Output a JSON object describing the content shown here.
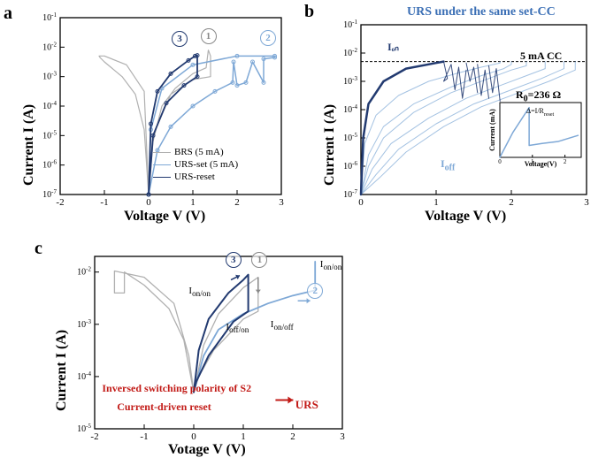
{
  "colors": {
    "bg": "#ffffff",
    "axis": "#000000",
    "brs": "#b0b0b0",
    "urs_set": "#7ea8d6",
    "urs_reset": "#223a70",
    "red": "#c21b17",
    "circ_gray": "#888888",
    "circ_blue": "#7ea8d6",
    "circ_dark": "#223a70"
  },
  "panel_a": {
    "label": "a",
    "xaxis": "Voltage V (V)",
    "yaxis": "Current I (A)",
    "xlim": [
      -2,
      3
    ],
    "ylim_exp": [
      -7,
      -1
    ],
    "xticks": [
      -2,
      -1,
      0,
      1,
      2,
      3
    ],
    "yticks_exp": [
      -7,
      -6,
      -5,
      -4,
      -3,
      -2,
      -1
    ],
    "legend": [
      {
        "color": "#b0b0b0",
        "label": "BRS (5 mA)",
        "marker": false
      },
      {
        "color": "#7ea8d6",
        "label": "URS-set (5 mA)",
        "marker": true
      },
      {
        "color": "#223a70",
        "label": "URS-reset",
        "marker": true
      }
    ],
    "markers": {
      "m1": {
        "num": "1",
        "x": 1.35,
        "yexp": -1.9,
        "color": "#888888"
      },
      "m2": {
        "num": "2",
        "x": 2.7,
        "yexp": -1.95,
        "color": "#7ea8d6"
      },
      "m3": {
        "num": "3",
        "x": 0.7,
        "yexp": -2.0,
        "color": "#223a70"
      }
    },
    "series": {
      "brs_pos": [
        [
          0,
          -7
        ],
        [
          0.1,
          -5.2
        ],
        [
          0.3,
          -4.0
        ],
        [
          0.6,
          -3.4
        ],
        [
          1.0,
          -2.9
        ],
        [
          1.3,
          -2.7
        ],
        [
          1.35,
          -2.1
        ],
        [
          1.4,
          -2.3
        ],
        [
          1.4,
          -3.0
        ],
        [
          1.0,
          -3.1
        ],
        [
          0.5,
          -3.6
        ],
        [
          0.1,
          -5.0
        ],
        [
          0,
          -7
        ]
      ],
      "brs_neg": [
        [
          0,
          -7
        ],
        [
          -0.1,
          -4.8
        ],
        [
          -0.3,
          -3.6
        ],
        [
          -0.6,
          -3.0
        ],
        [
          -1.0,
          -2.5
        ],
        [
          -1.1,
          -2.35
        ],
        [
          -1.12,
          -2.3
        ],
        [
          -1.0,
          -2.3
        ],
        [
          -0.5,
          -2.6
        ],
        [
          -0.1,
          -3.5
        ],
        [
          0,
          -7
        ]
      ],
      "urs_set": [
        [
          0,
          -7
        ],
        [
          0.2,
          -5.5
        ],
        [
          0.5,
          -4.7
        ],
        [
          1.0,
          -4.0
        ],
        [
          1.5,
          -3.5
        ],
        [
          1.9,
          -3.2
        ],
        [
          1.92,
          -2.5
        ],
        [
          2.0,
          -3.3
        ],
        [
          2.2,
          -3.2
        ],
        [
          2.35,
          -2.5
        ],
        [
          2.6,
          -3.2
        ],
        [
          2.6,
          -2.4
        ],
        [
          2.85,
          -2.35
        ],
        [
          2.85,
          -2.3
        ],
        [
          2.0,
          -2.3
        ],
        [
          1.0,
          -2.6
        ],
        [
          0.3,
          -3.4
        ],
        [
          0.05,
          -4.8
        ],
        [
          0,
          -7
        ]
      ],
      "urs_reset": [
        [
          0,
          -7
        ],
        [
          0.05,
          -4.6
        ],
        [
          0.2,
          -3.5
        ],
        [
          0.5,
          -2.9
        ],
        [
          0.9,
          -2.45
        ],
        [
          1.05,
          -2.3
        ],
        [
          1.1,
          -2.28
        ],
        [
          1.1,
          -3.0
        ],
        [
          0.8,
          -3.3
        ],
        [
          0.4,
          -3.9
        ],
        [
          0.1,
          -5.0
        ],
        [
          0,
          -7
        ]
      ]
    }
  },
  "panel_b": {
    "label": "b",
    "header": "URS under the same set-CC",
    "xaxis": "Voltage V (V)",
    "yaxis": "Current I (A)",
    "xlim": [
      0,
      3
    ],
    "ylim_exp": [
      -7,
      -1
    ],
    "xticks": [
      0,
      1,
      2,
      3
    ],
    "yticks_exp": [
      -7,
      -6,
      -5,
      -4,
      -3,
      -2,
      -1
    ],
    "cc_label": "5 mA CC",
    "cc_exp": -2.3,
    "ion_label": "Iₒₙ",
    "ioff_label": "I_off",
    "r0_label": "R₀=236 Ω",
    "inset": {
      "xaxis": "Voltage(V)",
      "yaxis": "Current (mA)",
      "delta_label": "Δ=I/R_reset",
      "curve": [
        [
          0,
          0
        ],
        [
          0.4,
          2.5
        ],
        [
          0.9,
          5.0
        ],
        [
          0.9,
          1.2
        ],
        [
          1.3,
          1.4
        ],
        [
          1.8,
          1.6
        ],
        [
          2.0,
          1.8
        ],
        [
          2.2,
          2.0
        ],
        [
          2.4,
          2.2
        ]
      ]
    },
    "ion_curve": [
      [
        0,
        -7
      ],
      [
        0.03,
        -5.0
      ],
      [
        0.1,
        -3.8
      ],
      [
        0.3,
        -3.0
      ],
      [
        0.6,
        -2.55
      ],
      [
        1.0,
        -2.35
      ],
      [
        1.1,
        -2.3
      ]
    ],
    "reset_band": [
      [
        [
          1.1,
          -2.3
        ],
        [
          1.15,
          -2.9
        ],
        [
          1.1,
          -3.0
        ],
        [
          1.2,
          -2.4
        ],
        [
          1.25,
          -3.3
        ],
        [
          1.3,
          -2.5
        ],
        [
          1.35,
          -3.6
        ],
        [
          1.4,
          -2.6
        ]
      ],
      [
        [
          1.4,
          -2.35
        ],
        [
          1.45,
          -3.0
        ],
        [
          1.5,
          -2.5
        ],
        [
          1.55,
          -3.4
        ]
      ],
      [
        [
          1.55,
          -2.4
        ],
        [
          1.6,
          -3.5
        ],
        [
          1.65,
          -2.6
        ],
        [
          1.7,
          -3.6
        ]
      ],
      [
        [
          1.7,
          -2.45
        ],
        [
          1.75,
          -3.4
        ],
        [
          1.8,
          -2.55
        ],
        [
          1.85,
          -3.7
        ]
      ]
    ],
    "ioff_curves": [
      [
        [
          0,
          -7
        ],
        [
          0.1,
          -6.0
        ],
        [
          0.3,
          -5.0
        ],
        [
          0.7,
          -4.1
        ],
        [
          1.2,
          -3.4
        ],
        [
          1.7,
          -2.9
        ],
        [
          2.0,
          -2.6
        ],
        [
          2.2,
          -2.45
        ],
        [
          2.2,
          -2.3
        ]
      ],
      [
        [
          0,
          -7
        ],
        [
          0.15,
          -6.1
        ],
        [
          0.4,
          -5.2
        ],
        [
          0.9,
          -4.3
        ],
        [
          1.4,
          -3.6
        ],
        [
          1.9,
          -3.1
        ],
        [
          2.2,
          -2.8
        ],
        [
          2.45,
          -2.55
        ],
        [
          2.45,
          -2.3
        ]
      ],
      [
        [
          0,
          -7
        ],
        [
          0.2,
          -6.3
        ],
        [
          0.5,
          -5.4
        ],
        [
          1.0,
          -4.5
        ],
        [
          1.5,
          -3.8
        ],
        [
          2.0,
          -3.3
        ],
        [
          2.4,
          -2.9
        ],
        [
          2.7,
          -2.55
        ],
        [
          2.7,
          -2.3
        ]
      ],
      [
        [
          0,
          -7
        ],
        [
          0.1,
          -5.6
        ],
        [
          0.3,
          -4.6
        ],
        [
          0.7,
          -3.8
        ],
        [
          1.2,
          -3.2
        ],
        [
          1.6,
          -2.8
        ],
        [
          1.9,
          -2.55
        ],
        [
          2.0,
          -2.4
        ],
        [
          2.0,
          -2.3
        ]
      ],
      [
        [
          0,
          -7
        ],
        [
          0.05,
          -5.2
        ],
        [
          0.2,
          -4.2
        ],
        [
          0.5,
          -3.5
        ],
        [
          0.9,
          -3.0
        ],
        [
          1.3,
          -2.7
        ],
        [
          1.6,
          -2.5
        ],
        [
          1.85,
          -2.35
        ],
        [
          1.85,
          -2.3
        ]
      ],
      [
        [
          0,
          -7
        ],
        [
          0.25,
          -6.4
        ],
        [
          0.6,
          -5.5
        ],
        [
          1.1,
          -4.6
        ],
        [
          1.6,
          -3.9
        ],
        [
          2.1,
          -3.4
        ],
        [
          2.5,
          -3.0
        ],
        [
          2.85,
          -2.6
        ],
        [
          2.85,
          -2.3
        ]
      ]
    ]
  },
  "panel_c": {
    "label": "c",
    "xaxis": "Votage V (V)",
    "yaxis": "Current I (A)",
    "xlim": [
      -2,
      3
    ],
    "ylim_exp": [
      -5,
      -1.7
    ],
    "xticks": [
      -2,
      -1,
      0,
      1,
      2,
      3
    ],
    "yticks_exp": [
      -5,
      -4,
      -3,
      -2
    ],
    "markers": {
      "m1": {
        "num": "1",
        "x": 1.33,
        "yexp": -1.95,
        "color": "#888888"
      },
      "m2": {
        "num": "2",
        "x": 2.45,
        "yexp": -2.55,
        "color": "#7ea8d6"
      },
      "m3": {
        "num": "3",
        "x": 0.8,
        "yexp": -1.95,
        "color": "#223a70"
      }
    },
    "labels": {
      "ion_on_a": "I_on/on",
      "ioff_on": "I_off/on",
      "ion_off": "I_on/off",
      "ion_on_b": "I_on/on"
    },
    "red1": "Inversed switching polarity of S2",
    "red2": "Current-driven reset",
    "red_urs": "URS",
    "series": {
      "gray_neg": [
        [
          0,
          -4.3
        ],
        [
          -0.2,
          -3.3
        ],
        [
          -0.5,
          -2.7
        ],
        [
          -1.0,
          -2.25
        ],
        [
          -1.4,
          -2.0
        ],
        [
          -1.4,
          -2.4
        ],
        [
          -1.6,
          -2.4
        ],
        [
          -1.6,
          -1.98
        ],
        [
          -1.0,
          -2.1
        ],
        [
          -0.4,
          -2.6
        ],
        [
          -0.1,
          -3.6
        ],
        [
          0,
          -4.3
        ]
      ],
      "gray_pos": [
        [
          0,
          -4.3
        ],
        [
          0.2,
          -3.4
        ],
        [
          0.5,
          -2.8
        ],
        [
          1.0,
          -2.3
        ],
        [
          1.3,
          -2.1
        ],
        [
          1.3,
          -2.75
        ],
        [
          1.0,
          -2.9
        ],
        [
          0.4,
          -3.5
        ],
        [
          0.1,
          -4.0
        ],
        [
          0,
          -4.3
        ]
      ],
      "blue_set": [
        [
          0,
          -4.3
        ],
        [
          0.2,
          -3.6
        ],
        [
          0.5,
          -3.1
        ],
        [
          1.0,
          -2.8
        ],
        [
          1.5,
          -2.6
        ],
        [
          2.0,
          -2.45
        ],
        [
          2.45,
          -2.35
        ],
        [
          2.45,
          -1.8
        ]
      ],
      "dark_reset": [
        [
          0,
          -4.3
        ],
        [
          0.1,
          -3.5
        ],
        [
          0.3,
          -2.9
        ],
        [
          0.7,
          -2.4
        ],
        [
          1.0,
          -2.15
        ],
        [
          1.1,
          -2.05
        ],
        [
          1.1,
          -2.75
        ],
        [
          0.8,
          -2.95
        ],
        [
          0.3,
          -3.6
        ],
        [
          0.05,
          -4.1
        ],
        [
          0,
          -4.3
        ]
      ]
    }
  }
}
